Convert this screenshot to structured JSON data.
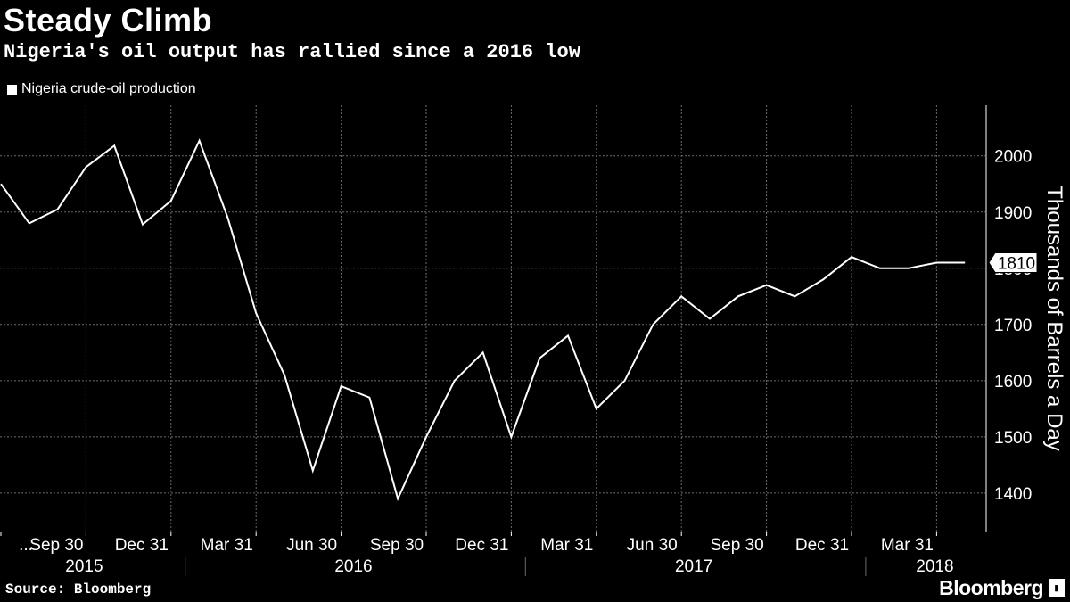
{
  "header": {
    "title": "Steady Climb",
    "subtitle": "Nigeria's oil output has rallied since a 2016 low"
  },
  "legend": {
    "label": "Nigeria crude-oil production"
  },
  "footer": {
    "source": "Source: Bloomberg",
    "brand": "Bloomberg"
  },
  "colors": {
    "background": "#000000",
    "line": "#ffffff",
    "grid": "#6b6b6b",
    "text": "#ffffff"
  },
  "chart_data": {
    "type": "line",
    "title": "Steady Climb",
    "subtitle": "Nigeria's oil output has rallied since a 2016 low",
    "ylabel": "Thousands of Barrels a Day",
    "xlabel": "",
    "ylim": [
      1330,
      2090
    ],
    "yticks": [
      1400,
      1500,
      1600,
      1700,
      1800,
      1900,
      2000
    ],
    "grid": true,
    "legend_position": "top-left",
    "last_value_label": "1810",
    "x_tick_labels": [
      {
        "label": "...",
        "month_index": 0
      },
      {
        "label": "Sep 30",
        "month_index": 3
      },
      {
        "label": "Dec 31",
        "month_index": 6
      },
      {
        "label": "Mar 31",
        "month_index": 9
      },
      {
        "label": "Jun 30",
        "month_index": 12
      },
      {
        "label": "Sep 30",
        "month_index": 15
      },
      {
        "label": "Dec 31",
        "month_index": 18
      },
      {
        "label": "Mar 31",
        "month_index": 21
      },
      {
        "label": "Jun 30",
        "month_index": 24
      },
      {
        "label": "Sep 30",
        "month_index": 27
      },
      {
        "label": "Dec 31",
        "month_index": 30
      },
      {
        "label": "Mar 31",
        "month_index": 33
      }
    ],
    "years": [
      {
        "label": "2015",
        "center_month_index": 3
      },
      {
        "label": "2016",
        "center_month_index": 12.5
      },
      {
        "label": "2017",
        "center_month_index": 24.5
      },
      {
        "label": "2018",
        "center_month_index": 33
      }
    ],
    "year_separators_month_index": [
      6.5,
      18.5,
      30.5
    ],
    "series": [
      {
        "name": "Nigeria crude-oil production",
        "month_index": [
          0,
          1,
          2,
          3,
          4,
          5,
          6,
          7,
          8,
          9,
          10,
          11,
          12,
          13,
          14,
          15,
          16,
          17,
          18,
          19,
          20,
          21,
          22,
          23,
          24,
          25,
          26,
          27,
          28,
          29,
          30,
          31,
          32,
          33,
          34
        ],
        "values": [
          1950,
          1880,
          1905,
          1980,
          2018,
          1878,
          1920,
          2027,
          1890,
          1720,
          1610,
          1440,
          1590,
          1570,
          1390,
          1500,
          1600,
          1650,
          1500,
          1640,
          1680,
          1550,
          1600,
          1700,
          1750,
          1710,
          1750,
          1770,
          1750,
          1780,
          1820,
          1800,
          1800,
          1810,
          1810
        ]
      }
    ]
  }
}
